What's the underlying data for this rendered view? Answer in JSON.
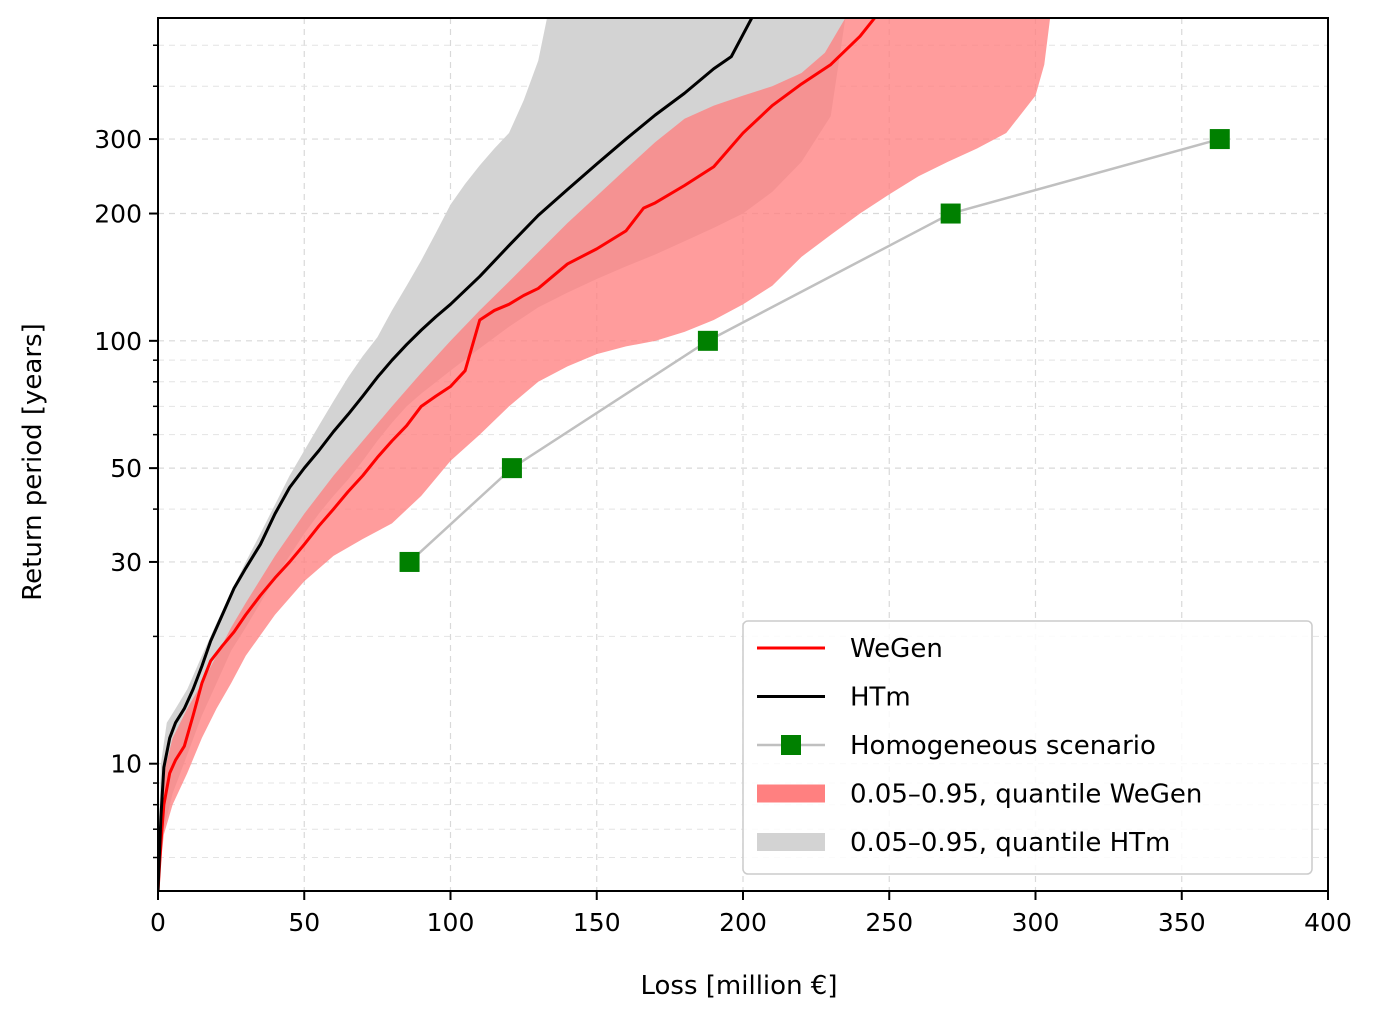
{
  "chart_data": {
    "type": "line",
    "title": "",
    "xlabel": "Loss [million €]",
    "ylabel": "Return period [years]",
    "xlim": [
      0,
      400
    ],
    "ylim": [
      5,
      580
    ],
    "yscale": "log",
    "grid": true,
    "legend_position": "lower-right",
    "x_ticks": [
      0,
      50,
      100,
      150,
      200,
      250,
      300,
      350,
      400
    ],
    "x_tick_labels": [
      "0",
      "50",
      "100",
      "150",
      "200",
      "250",
      "300",
      "350",
      "400"
    ],
    "y_ticks": [
      10,
      30,
      50,
      100,
      200,
      300
    ],
    "y_tick_labels": [
      "10",
      "30",
      "50",
      "100",
      "200",
      "300"
    ],
    "y_minor_ticks": [
      6,
      7,
      8,
      9,
      20,
      40,
      60,
      70,
      80,
      90,
      400,
      500
    ],
    "colors": {
      "wegen": "#ff0000",
      "htm": "#000000",
      "homogeneous_line": "#c0c0c0",
      "homogeneous_marker": "#008000",
      "wegen_band": "#ff8080",
      "htm_band": "#d3d3d3"
    },
    "series": [
      {
        "name": "WeGen",
        "kind": "line",
        "x": [
          0,
          1,
          2,
          4,
          6,
          9,
          12,
          15,
          18,
          22,
          26,
          30,
          35,
          40,
          45,
          50,
          55,
          60,
          65,
          70,
          75,
          80,
          85,
          90,
          95,
          100,
          105,
          110,
          115,
          120,
          125,
          130,
          140,
          150,
          160,
          166,
          170,
          180,
          190,
          200,
          210,
          220,
          230,
          240,
          245
        ],
        "y": [
          5,
          6.5,
          8,
          9.5,
          10.2,
          11,
          13,
          15.5,
          17.5,
          19,
          20.5,
          22.5,
          25,
          27.5,
          30,
          33,
          36.5,
          40,
          44,
          48,
          53,
          58,
          63,
          70,
          74,
          78,
          85,
          112,
          118,
          122,
          128,
          133,
          152,
          165,
          182,
          206,
          212,
          233,
          258,
          310,
          360,
          405,
          450,
          525,
          580
        ]
      },
      {
        "name": "HTm",
        "kind": "line",
        "x": [
          0,
          1,
          2,
          4,
          6,
          9,
          12,
          15,
          18,
          22,
          26,
          30,
          35,
          40,
          45,
          50,
          55,
          60,
          65,
          70,
          75,
          80,
          85,
          90,
          95,
          100,
          110,
          120,
          130,
          140,
          150,
          160,
          170,
          180,
          190,
          196,
          200,
          203
        ],
        "y": [
          5,
          7.5,
          9.8,
          11.5,
          12.5,
          13.5,
          15,
          17,
          19.5,
          22.5,
          26,
          29,
          33,
          39,
          45,
          50,
          55,
          61,
          67,
          74,
          82,
          90,
          98,
          106,
          114,
          122,
          142,
          168,
          198,
          228,
          262,
          300,
          342,
          385,
          440,
          470,
          530,
          580
        ]
      },
      {
        "name": "Homogeneous scenario",
        "kind": "line-marker",
        "marker": "square",
        "x": [
          86,
          121,
          188,
          271,
          363
        ],
        "y": [
          30,
          50,
          100,
          200,
          300
        ]
      },
      {
        "name": "0.05–0.95, quantile WeGen",
        "kind": "band",
        "x_upper": [
          0,
          2,
          5,
          10,
          15,
          20,
          25,
          30,
          40,
          50,
          60,
          70,
          80,
          90,
          100,
          110,
          120,
          130,
          140,
          150,
          160,
          170,
          180,
          190,
          200,
          210,
          220,
          228,
          235
        ],
        "y_upper": [
          6,
          9.5,
          11.5,
          13.5,
          15.5,
          18,
          21,
          24,
          31,
          39,
          48,
          58,
          70,
          84,
          100,
          118,
          138,
          162,
          190,
          220,
          255,
          295,
          335,
          360,
          380,
          400,
          430,
          480,
          580
        ],
        "x_lower": [
          0,
          2,
          5,
          10,
          15,
          20,
          25,
          30,
          40,
          50,
          60,
          70,
          80,
          90,
          100,
          110,
          120,
          130,
          140,
          150,
          160,
          170,
          180,
          190,
          200,
          210,
          220,
          230,
          240,
          250,
          260,
          270,
          280,
          290,
          300,
          303,
          305
        ],
        "y_lower": [
          5,
          6.8,
          8,
          9.5,
          11.5,
          13.5,
          15.5,
          18,
          22.5,
          27,
          31,
          34,
          37,
          43,
          52,
          60,
          70,
          80,
          87,
          93,
          97,
          100,
          105,
          112,
          122,
          135,
          158,
          178,
          200,
          222,
          245,
          265,
          285,
          310,
          380,
          450,
          580
        ]
      },
      {
        "name": "0.05–0.95, quantile HTm",
        "kind": "band",
        "x_upper": [
          0,
          1,
          3,
          6,
          10,
          15,
          20,
          25,
          30,
          35,
          40,
          45,
          50,
          55,
          60,
          65,
          70,
          75,
          80,
          85,
          90,
          95,
          100,
          105,
          110,
          115,
          120,
          125,
          130,
          133
        ],
        "y_upper": [
          6,
          10,
          12.5,
          13.5,
          15,
          18,
          21.5,
          25.5,
          30,
          35,
          41,
          48,
          55,
          63,
          72,
          82,
          92,
          102,
          118,
          135,
          155,
          180,
          210,
          235,
          260,
          285,
          310,
          370,
          460,
          580
        ],
        "x_lower": [
          0,
          2,
          5,
          10,
          15,
          20,
          25,
          30,
          35,
          40,
          45,
          50,
          55,
          60,
          65,
          70,
          75,
          80,
          85,
          90,
          100,
          110,
          120,
          130,
          140,
          150,
          160,
          170,
          180,
          190,
          200,
          210,
          220,
          230,
          235
        ],
        "y_lower": [
          5,
          7,
          8.5,
          10.5,
          13,
          15.5,
          18.5,
          21,
          24,
          27.5,
          31,
          35,
          39,
          43,
          47,
          52,
          58,
          64,
          70,
          75,
          85,
          96,
          108,
          120,
          130,
          140,
          150,
          160,
          172,
          185,
          200,
          225,
          265,
          340,
          580
        ]
      }
    ],
    "legend": [
      {
        "label": "WeGen",
        "kind": "line",
        "color": "#ff0000"
      },
      {
        "label": "HTm",
        "kind": "line",
        "color": "#000000"
      },
      {
        "label": "Homogeneous scenario",
        "kind": "line-marker",
        "color": "#c0c0c0",
        "marker_color": "#008000"
      },
      {
        "label": "0.05–0.95, quantile WeGen",
        "kind": "patch",
        "color": "#ff8080"
      },
      {
        "label": "0.05–0.95, quantile HTm",
        "kind": "patch",
        "color": "#d3d3d3"
      }
    ]
  }
}
